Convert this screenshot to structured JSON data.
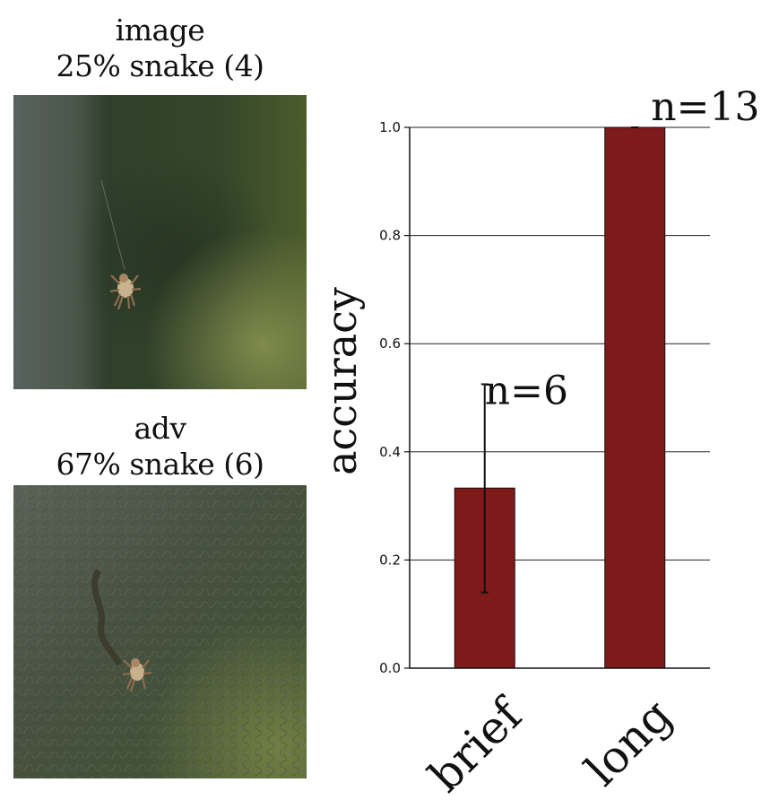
{
  "panels": {
    "top": {
      "title_line1": "image",
      "title_line2": "25% snake (4)",
      "image": "spider-on-thread-photo"
    },
    "bottom": {
      "title_line1": "adv",
      "title_line2": "67% snake (6)",
      "image": "adversarial-spider-snake-photo"
    }
  },
  "chart_data": {
    "type": "bar",
    "categories": [
      "brief",
      "long"
    ],
    "values": [
      0.333,
      1.0
    ],
    "error_low": [
      0.14,
      1.0
    ],
    "error_high": [
      0.525,
      1.0
    ],
    "n_labels": [
      "n=6",
      "n=13"
    ],
    "ylabel": "accuracy",
    "xlabel": "",
    "ylim": [
      0.0,
      1.0
    ],
    "yticks": [
      "0.0",
      "0.2",
      "0.4",
      "0.6",
      "0.8",
      "1.0"
    ],
    "bar_color": "#7f1a1a",
    "grid": "horizontal",
    "legend": "none"
  }
}
